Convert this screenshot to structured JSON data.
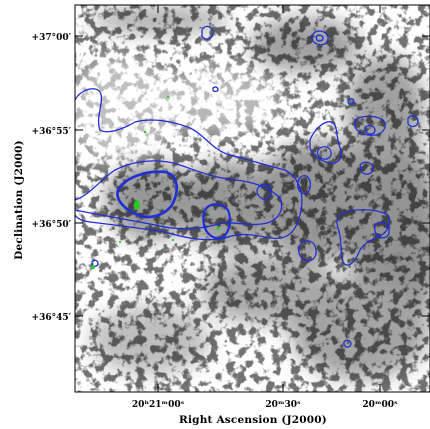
{
  "figure": {
    "xlabel": "Right Ascension (J2000)",
    "ylabel": "Declination (J2000)",
    "x_ticks": [
      {
        "label": "20ʰ21ᵐ00ˢ"
      },
      {
        "label": "20ᵐ30ˢ"
      },
      {
        "label": "20ᵐ00ˢ"
      }
    ],
    "y_ticks": [
      {
        "label": "+37°00′"
      },
      {
        "label": "+36°55′"
      },
      {
        "label": "+36°50′"
      },
      {
        "label": "+36°45′"
      }
    ],
    "colors": {
      "contour": "#1f2fd6",
      "points": "#22cc22",
      "frame": "#000000"
    }
  }
}
